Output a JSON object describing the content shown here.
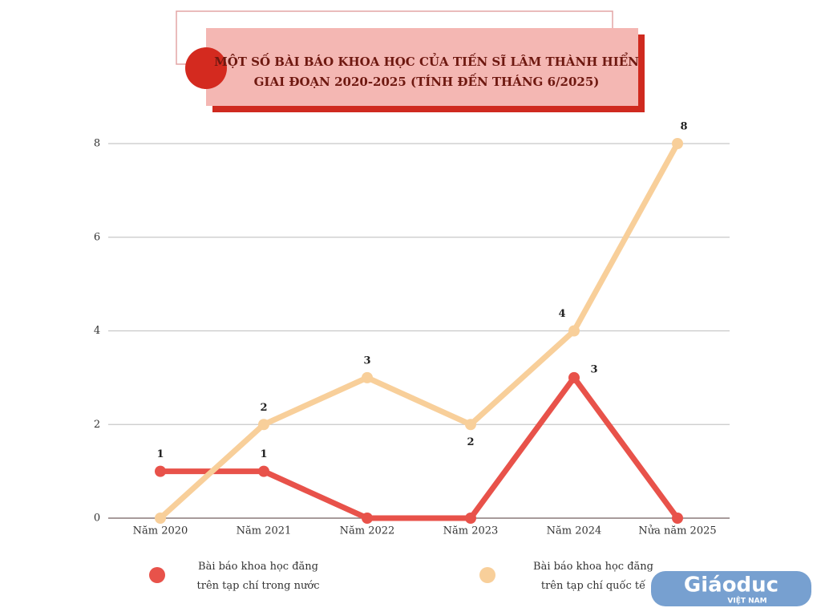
{
  "chart_data": {
    "type": "line",
    "title": [
      "MỘT SỐ BÀI BÁO KHOA HỌC CỦA TIẾN SĨ LÂM THÀNH HIỂN",
      "GIAI ĐOẠN 2020-2025 (TÍNH ĐẾN THÁNG 6/2025)"
    ],
    "categories": [
      "Năm 2020",
      "Năm 2021",
      "Năm 2022",
      "Năm 2023",
      "Năm 2024",
      "Nửa năm 2025"
    ],
    "series": [
      {
        "name": "Bài báo khoa học đăng trên tạp chí trong nước",
        "color": "#e8524a",
        "values": [
          1,
          1,
          0,
          0,
          3,
          0
        ]
      },
      {
        "name": "Bài báo khoa học đăng trên tạp chí quốc tế",
        "color": "#f8cf9a",
        "values": [
          0,
          2,
          3,
          2,
          4,
          8
        ]
      }
    ],
    "ylim": [
      0,
      8
    ],
    "yticks": [
      0,
      2,
      4,
      6,
      8
    ],
    "grid": true
  },
  "logo": {
    "name": "Giáoduc",
    "sub": "VIỆT NAM"
  }
}
